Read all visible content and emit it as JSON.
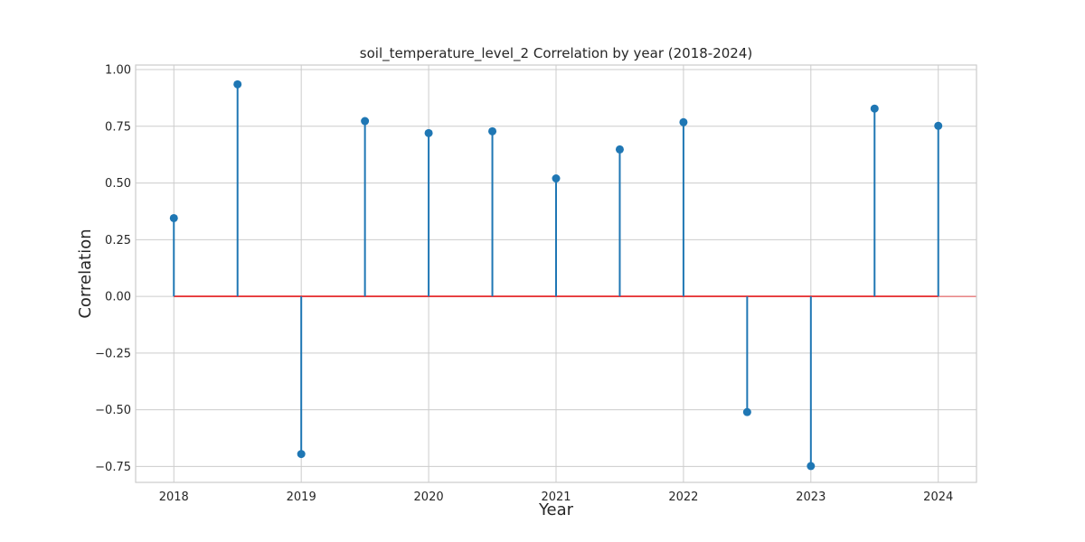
{
  "chart_data": {
    "type": "stem",
    "title": "soil_temperature_level_2 Correlation by year (2018-2024)",
    "xlabel": "Year",
    "ylabel": "Correlation",
    "xlim": [
      2017.7,
      2024.3
    ],
    "ylim": [
      -0.82,
      1.02
    ],
    "xticks": [
      2018,
      2019,
      2020,
      2021,
      2022,
      2023,
      2024
    ],
    "xtick_labels": [
      "2018",
      "2019",
      "2020",
      "2021",
      "2022",
      "2023",
      "2024"
    ],
    "yticks": [
      1.0,
      0.75,
      0.5,
      0.25,
      0.0,
      -0.25,
      -0.5,
      -0.75
    ],
    "ytick_labels": [
      "1.00",
      "0.75",
      "0.50",
      "0.25",
      "0.00",
      "−0.25",
      "−0.50",
      "−0.75"
    ],
    "grid": true,
    "baseline": 0.0,
    "colors": {
      "stem": "#1f77b4",
      "marker": "#1f77b4",
      "baseline": "#e41a1c",
      "grid": "#cccccc"
    },
    "x": [
      2018.0,
      2018.5,
      2019.0,
      2019.5,
      2020.0,
      2020.5,
      2021.0,
      2021.5,
      2022.0,
      2022.5,
      2023.0,
      2023.5,
      2024.0
    ],
    "y": [
      0.345,
      0.935,
      -0.695,
      0.773,
      0.72,
      0.728,
      0.52,
      0.648,
      0.768,
      -0.51,
      -0.748,
      0.828,
      0.752
    ]
  }
}
